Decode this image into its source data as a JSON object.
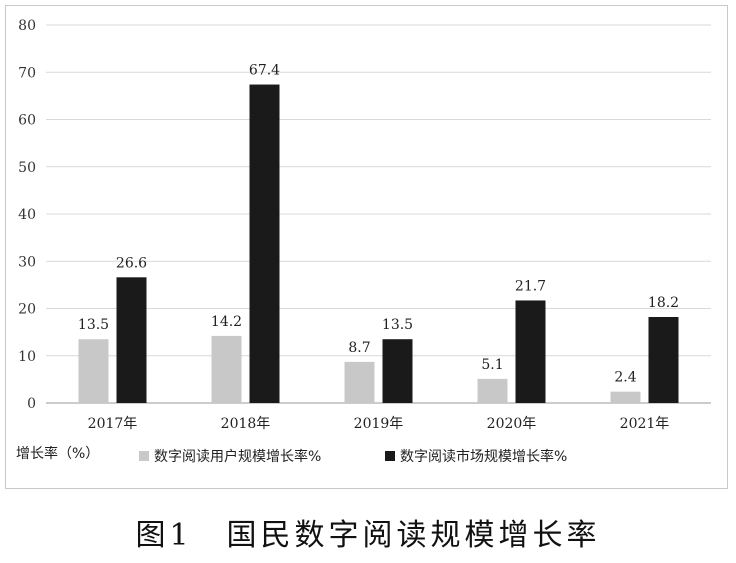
{
  "chart_data": {
    "type": "bar",
    "categories": [
      "2017年",
      "2018年",
      "2019年",
      "2020年",
      "2021年"
    ],
    "series": [
      {
        "name": "数字阅读用户规模增长率%",
        "values": [
          13.5,
          14.2,
          8.7,
          5.1,
          2.4
        ],
        "color": "#c8c8c8"
      },
      {
        "name": "数字阅读市场规模增长率%",
        "values": [
          26.6,
          67.4,
          13.5,
          21.7,
          18.2
        ],
        "color": "#1a1a1a"
      }
    ],
    "ylabel": "增长率（%）",
    "ylim": [
      0,
      80
    ],
    "yticks": [
      0,
      10,
      20,
      30,
      40,
      50,
      60,
      70,
      80
    ],
    "grid": true,
    "legend": "bottom"
  },
  "caption": "图1　国民数字阅读规模增长率"
}
